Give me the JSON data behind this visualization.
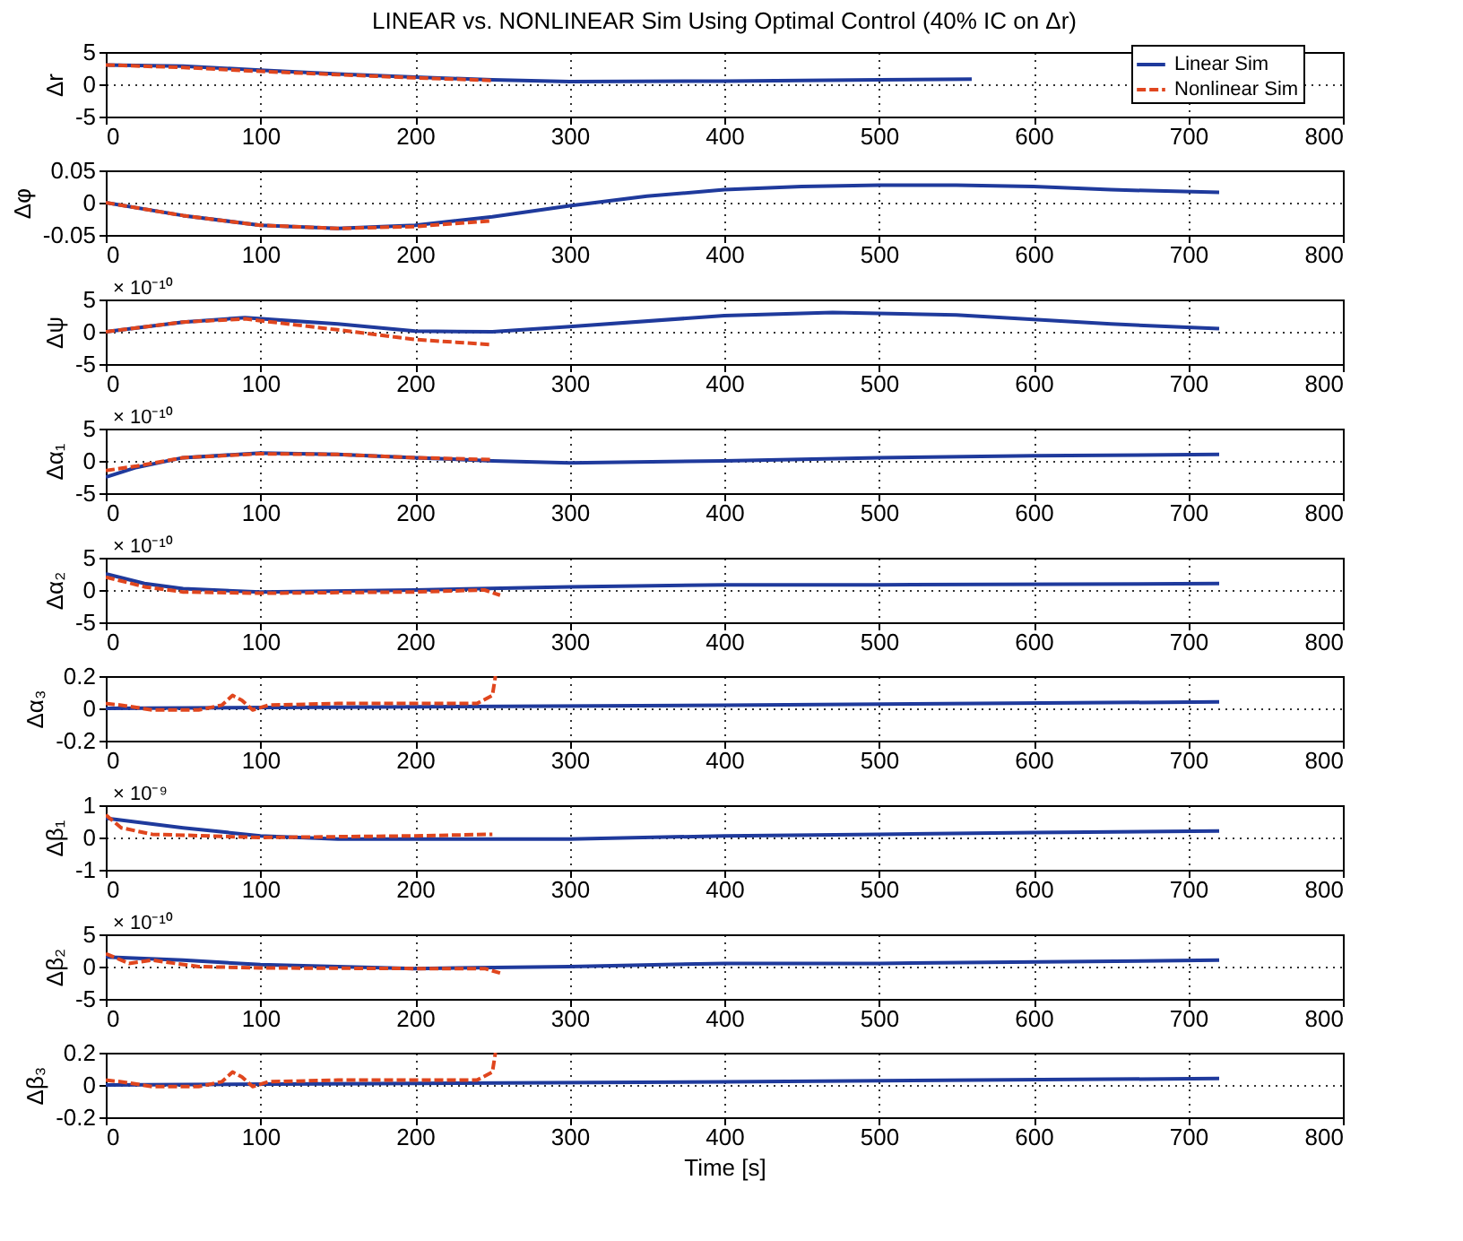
{
  "chart_data": [
    {
      "type": "line",
      "title": "LINEAR vs. NONLINEAR Sim Using Optimal Control (40% IC on Δr)",
      "ylabel": "Δr",
      "xlim": [
        0,
        800
      ],
      "xticks": [
        0,
        100,
        200,
        300,
        400,
        500,
        600,
        700,
        800
      ],
      "ylim": [
        -5,
        5
      ],
      "yticks": [
        -5,
        0,
        5
      ],
      "grid": true,
      "legend": "top right",
      "series": [
        {
          "name": "Linear Sim",
          "color": "#1f3a9c",
          "line_style": "solid",
          "x": [
            0,
            50,
            100,
            150,
            200,
            250,
            300,
            400,
            500,
            560
          ],
          "values": [
            3,
            2.8,
            2.2,
            1.6,
            1.1,
            0.7,
            0.4,
            0.5,
            0.7,
            0.8
          ]
        },
        {
          "name": "Nonlinear Sim",
          "color": "#e0461e",
          "line_style": "dashed",
          "x": [
            0,
            50,
            100,
            150,
            200,
            250
          ],
          "values": [
            3,
            2.6,
            2,
            1.5,
            1,
            0.6
          ]
        }
      ]
    },
    {
      "type": "line",
      "ylabel": "Δφ",
      "xlim": [
        0,
        800
      ],
      "xticks": [
        0,
        100,
        200,
        300,
        400,
        500,
        600,
        700,
        800
      ],
      "ylim": [
        -0.05,
        0.05
      ],
      "yticks": [
        -0.05,
        0,
        0.05
      ],
      "grid": true,
      "series": [
        {
          "color": "#1f3a9c",
          "line_style": "solid",
          "x": [
            0,
            50,
            100,
            150,
            200,
            250,
            300,
            350,
            400,
            450,
            500,
            550,
            600,
            650,
            720
          ],
          "values": [
            0,
            -0.02,
            -0.035,
            -0.04,
            -0.035,
            -0.022,
            -0.005,
            0.01,
            0.02,
            0.025,
            0.027,
            0.027,
            0.025,
            0.02,
            0.016
          ]
        },
        {
          "color": "#e0461e",
          "line_style": "dashed",
          "x": [
            0,
            50,
            100,
            150,
            200,
            250
          ],
          "values": [
            0,
            -0.02,
            -0.035,
            -0.04,
            -0.037,
            -0.028
          ]
        }
      ]
    },
    {
      "type": "line",
      "ylabel": "Δψ",
      "annotations": [
        "× 10⁻¹⁰"
      ],
      "xlim": [
        0,
        800
      ],
      "xticks": [
        0,
        100,
        200,
        300,
        400,
        500,
        600,
        700,
        800
      ],
      "ylim": [
        -5,
        5
      ],
      "yticks": [
        -5,
        0,
        5
      ],
      "grid": true,
      "series": [
        {
          "color": "#1f3a9c",
          "line_style": "solid",
          "x": [
            0,
            50,
            90,
            150,
            200,
            250,
            300,
            400,
            470,
            550,
            650,
            720
          ],
          "values": [
            0,
            1.5,
            2.2,
            1.2,
            0.1,
            0,
            0.8,
            2.5,
            3,
            2.6,
            1.2,
            0.5
          ]
        },
        {
          "color": "#e0461e",
          "line_style": "dashed",
          "x": [
            0,
            50,
            90,
            150,
            200,
            250
          ],
          "values": [
            0,
            1.5,
            2,
            0.3,
            -1.2,
            -2
          ]
        }
      ]
    },
    {
      "type": "line",
      "ylabel": "Δα₁",
      "annotations": [
        "× 10⁻¹⁰"
      ],
      "xlim": [
        0,
        800
      ],
      "xticks": [
        0,
        100,
        200,
        300,
        400,
        500,
        600,
        700,
        800
      ],
      "ylim": [
        -5,
        5
      ],
      "yticks": [
        -5,
        0,
        5
      ],
      "grid": true,
      "series": [
        {
          "color": "#1f3a9c",
          "line_style": "solid",
          "x": [
            0,
            20,
            50,
            100,
            150,
            200,
            250,
            300,
            400,
            500,
            600,
            720
          ],
          "values": [
            -2.5,
            -1,
            0.5,
            1.2,
            1,
            0.5,
            0,
            -0.3,
            0,
            0.5,
            0.8,
            1
          ]
        },
        {
          "color": "#e0461e",
          "line_style": "dashed",
          "x": [
            0,
            20,
            50,
            100,
            150,
            200,
            250
          ],
          "values": [
            -1.5,
            -0.8,
            0.5,
            1.1,
            1,
            0.5,
            0.2
          ]
        }
      ]
    },
    {
      "type": "line",
      "ylabel": "Δα₂",
      "annotations": [
        "× 10⁻¹⁰"
      ],
      "xlim": [
        0,
        800
      ],
      "xticks": [
        0,
        100,
        200,
        300,
        400,
        500,
        600,
        700,
        800
      ],
      "ylim": [
        -5,
        5
      ],
      "yticks": [
        -5,
        0,
        5
      ],
      "grid": true,
      "series": [
        {
          "color": "#1f3a9c",
          "line_style": "solid",
          "x": [
            0,
            25,
            50,
            100,
            200,
            300,
            400,
            500,
            720
          ],
          "values": [
            2.5,
            1,
            0.2,
            -0.3,
            0,
            0.5,
            0.8,
            0.8,
            1
          ]
        },
        {
          "color": "#e0461e",
          "line_style": "dashed",
          "x": [
            0,
            25,
            50,
            100,
            200,
            245,
            255
          ],
          "values": [
            2,
            0.5,
            -0.3,
            -0.5,
            -0.3,
            0,
            -0.8
          ]
        }
      ]
    },
    {
      "type": "line",
      "ylabel": "Δα₃",
      "xlim": [
        0,
        800
      ],
      "xticks": [
        0,
        100,
        200,
        300,
        400,
        500,
        600,
        700,
        800
      ],
      "ylim": [
        -0.2,
        0.2
      ],
      "yticks": [
        -0.2,
        0,
        0.2
      ],
      "grid": true,
      "series": [
        {
          "color": "#1f3a9c",
          "line_style": "solid",
          "x": [
            0,
            200,
            400,
            720
          ],
          "values": [
            0,
            0.01,
            0.02,
            0.04
          ]
        },
        {
          "color": "#e0461e",
          "line_style": "dashed",
          "x": [
            0,
            10,
            30,
            60,
            75,
            82,
            88,
            95,
            105,
            150,
            200,
            240,
            250,
            252
          ],
          "values": [
            0.03,
            0.02,
            -0.01,
            -0.01,
            0.02,
            0.08,
            0.05,
            -0.01,
            0.02,
            0.03,
            0.03,
            0.03,
            0.08,
            0.2
          ]
        }
      ]
    },
    {
      "type": "line",
      "ylabel": "Δβ₁",
      "annotations": [
        "× 10⁻⁹"
      ],
      "xlim": [
        0,
        800
      ],
      "xticks": [
        0,
        100,
        200,
        300,
        400,
        500,
        600,
        700,
        800
      ],
      "ylim": [
        -1,
        1
      ],
      "yticks": [
        -1,
        0,
        1
      ],
      "grid": true,
      "series": [
        {
          "color": "#1f3a9c",
          "line_style": "solid",
          "x": [
            0,
            50,
            100,
            150,
            200,
            300,
            400,
            500,
            600,
            720
          ],
          "values": [
            0.6,
            0.3,
            0.05,
            -0.05,
            -0.05,
            -0.05,
            0.05,
            0.1,
            0.15,
            0.2
          ]
        },
        {
          "color": "#e0461e",
          "line_style": "dashed",
          "x": [
            0,
            10,
            30,
            100,
            200,
            250
          ],
          "values": [
            0.7,
            0.3,
            0.1,
            0,
            0.05,
            0.1
          ]
        }
      ]
    },
    {
      "type": "line",
      "ylabel": "Δβ₂",
      "annotations": [
        "× 10⁻¹⁰"
      ],
      "xlim": [
        0,
        800
      ],
      "xticks": [
        0,
        100,
        200,
        300,
        400,
        500,
        600,
        700,
        800
      ],
      "ylim": [
        -5,
        5
      ],
      "yticks": [
        -5,
        0,
        5
      ],
      "grid": true,
      "series": [
        {
          "color": "#1f3a9c",
          "line_style": "solid",
          "x": [
            0,
            50,
            100,
            200,
            300,
            400,
            500,
            720
          ],
          "values": [
            1.5,
            1,
            0.3,
            -0.3,
            0,
            0.5,
            0.5,
            1
          ]
        },
        {
          "color": "#e0461e",
          "line_style": "dashed",
          "x": [
            0,
            15,
            30,
            60,
            100,
            200,
            245,
            255
          ],
          "values": [
            2,
            0.5,
            1,
            0,
            -0.2,
            -0.3,
            -0.3,
            -1
          ]
        }
      ]
    },
    {
      "type": "line",
      "ylabel": "Δβ₃",
      "xlabel": "Time [s]",
      "xlim": [
        0,
        800
      ],
      "xticks": [
        0,
        100,
        200,
        300,
        400,
        500,
        600,
        700,
        800
      ],
      "ylim": [
        -0.2,
        0.2
      ],
      "yticks": [
        -0.2,
        0,
        0.2
      ],
      "grid": true,
      "series": [
        {
          "color": "#1f3a9c",
          "line_style": "solid",
          "x": [
            0,
            200,
            400,
            720
          ],
          "values": [
            0,
            0.01,
            0.02,
            0.04
          ]
        },
        {
          "color": "#e0461e",
          "line_style": "dashed",
          "x": [
            0,
            10,
            30,
            60,
            75,
            82,
            88,
            95,
            105,
            150,
            200,
            240,
            250,
            252
          ],
          "values": [
            0.03,
            0.02,
            -0.01,
            -0.01,
            0.02,
            0.08,
            0.05,
            -0.01,
            0.02,
            0.03,
            0.03,
            0.03,
            0.08,
            0.2
          ]
        }
      ]
    }
  ]
}
